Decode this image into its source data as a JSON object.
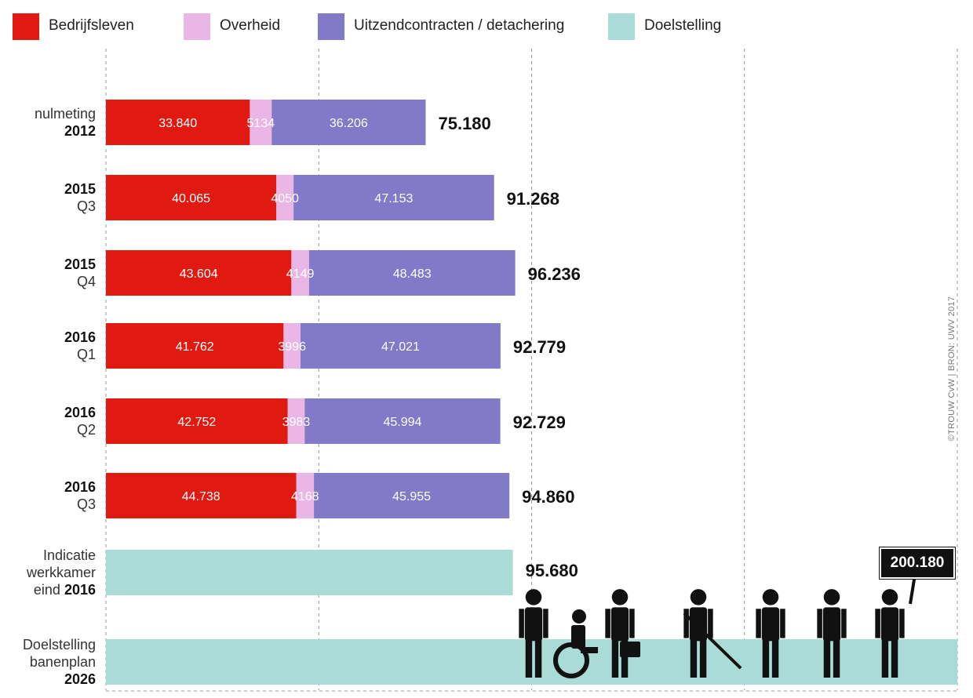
{
  "legend": [
    {
      "key": "bedrijfsleven",
      "label": "Bedrijfsleven",
      "color": "#e01a10"
    },
    {
      "key": "overheid",
      "label": "Overheid",
      "color": "#e9b6e6"
    },
    {
      "key": "uitzend",
      "label": "Uitzendcontracten / detachering",
      "color": "#8279c9"
    },
    {
      "key": "doel",
      "label": "Doelstelling",
      "color": "#a9dcd6"
    }
  ],
  "chart_data": {
    "type": "bar",
    "orientation": "horizontal",
    "stacked": true,
    "title": "",
    "xlabel": "",
    "ylabel": "",
    "xlim": [
      0,
      200180
    ],
    "grid": "vertical dashed",
    "legend_position": "top",
    "rows": [
      {
        "id": "nulmeting-2012",
        "label_lines": [
          "nulmeting",
          "2012"
        ],
        "segments": [
          {
            "series": "Bedrijfsleven",
            "value": 33840,
            "label": "33.840"
          },
          {
            "series": "Overheid",
            "value": 5134,
            "label": "5134"
          },
          {
            "series": "Uitzendcontracten / detachering",
            "value": 36206,
            "label": "36.206"
          }
        ],
        "total": 75180,
        "total_label": "75.180"
      },
      {
        "id": "2015-q3",
        "label_lines": [
          "2015",
          "Q3"
        ],
        "segments": [
          {
            "series": "Bedrijfsleven",
            "value": 40065,
            "label": "40.065"
          },
          {
            "series": "Overheid",
            "value": 4050,
            "label": "4050"
          },
          {
            "series": "Uitzendcontracten / detachering",
            "value": 47153,
            "label": "47.153"
          }
        ],
        "total": 91268,
        "total_label": "91.268"
      },
      {
        "id": "2015-q4",
        "label_lines": [
          "2015",
          "Q4"
        ],
        "segments": [
          {
            "series": "Bedrijfsleven",
            "value": 43604,
            "label": "43.604"
          },
          {
            "series": "Overheid",
            "value": 4149,
            "label": "4149"
          },
          {
            "series": "Uitzendcontracten / detachering",
            "value": 48483,
            "label": "48.483"
          }
        ],
        "total": 96236,
        "total_label": "96.236"
      },
      {
        "id": "2016-q1",
        "label_lines": [
          "2016",
          "Q1"
        ],
        "segments": [
          {
            "series": "Bedrijfsleven",
            "value": 41762,
            "label": "41.762"
          },
          {
            "series": "Overheid",
            "value": 3996,
            "label": "3996"
          },
          {
            "series": "Uitzendcontracten / detachering",
            "value": 47021,
            "label": "47.021"
          }
        ],
        "total": 92779,
        "total_label": "92.779"
      },
      {
        "id": "2016-q2",
        "label_lines": [
          "2016",
          "Q2"
        ],
        "segments": [
          {
            "series": "Bedrijfsleven",
            "value": 42752,
            "label": "42.752"
          },
          {
            "series": "Overheid",
            "value": 3983,
            "label": "3983"
          },
          {
            "series": "Uitzendcontracten / detachering",
            "value": 45994,
            "label": "45.994"
          }
        ],
        "total": 92729,
        "total_label": "92.729"
      },
      {
        "id": "2016-q3",
        "label_lines": [
          "2016",
          "Q3"
        ],
        "segments": [
          {
            "series": "Bedrijfsleven",
            "value": 44738,
            "label": "44.738"
          },
          {
            "series": "Overheid",
            "value": 4168,
            "label": "4168"
          },
          {
            "series": "Uitzendcontracten / detachering",
            "value": 45955,
            "label": "45.955"
          }
        ],
        "total": 94860,
        "total_label": "94.860"
      },
      {
        "id": "indicatie-2016",
        "label_lines": [
          "Indicatie",
          "werkkamer",
          "eind 2016"
        ],
        "segments": [
          {
            "series": "Doelstelling",
            "value": 95680,
            "label": ""
          }
        ],
        "total": 95680,
        "total_label": "95.680"
      },
      {
        "id": "doelstelling-2026",
        "label_lines": [
          "Doelstelling",
          "banenplan",
          "2026"
        ],
        "segments": [
          {
            "series": "Doelstelling",
            "value": 200180,
            "label": ""
          }
        ],
        "total": 200180,
        "total_label": "200.180"
      }
    ]
  },
  "credit": "©TROUW CvW | BRON: UWV 2017",
  "illustration": {
    "icon": "people-working-illustration",
    "sign_text": "200.180"
  }
}
